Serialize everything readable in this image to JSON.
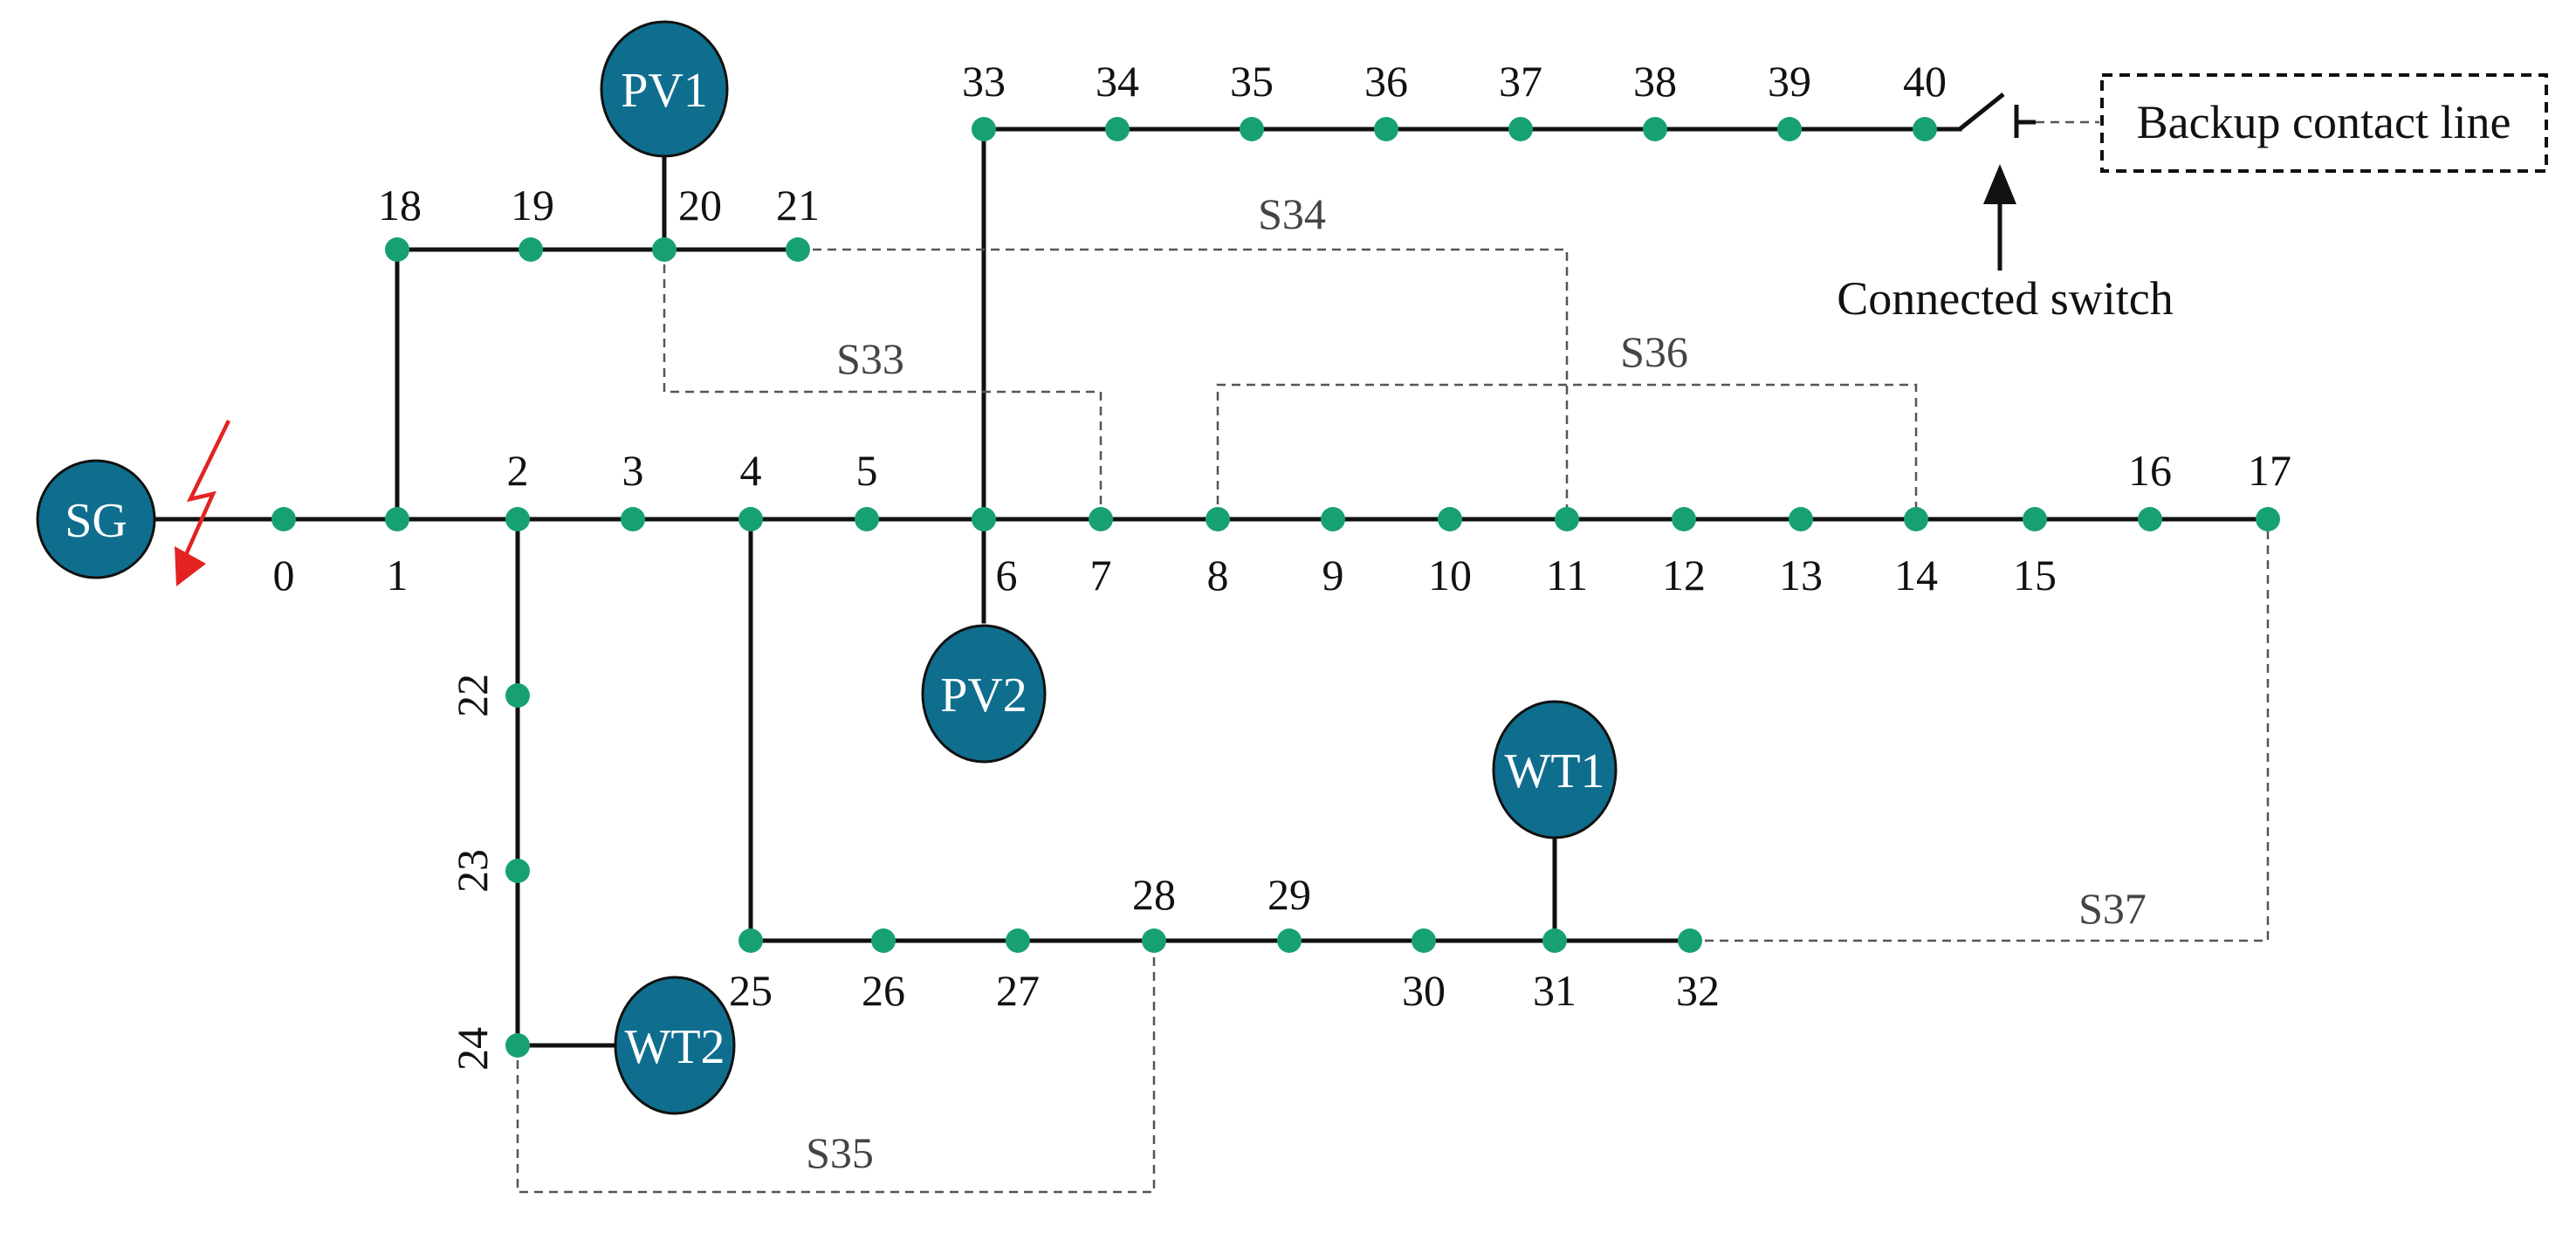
{
  "colors": {
    "node": "#17a173",
    "source_fill": "#0f6e8e",
    "line": "#111111",
    "tie_line": "#555555",
    "fault": "#e32222",
    "label_dark": "#111111",
    "label_tie": "#444444",
    "source_text": "#ffffff"
  },
  "nodes": [
    "0",
    "1",
    "2",
    "3",
    "4",
    "5",
    "6",
    "7",
    "8",
    "9",
    "10",
    "11",
    "12",
    "13",
    "14",
    "15",
    "16",
    "17",
    "18",
    "19",
    "20",
    "21",
    "22",
    "23",
    "24",
    "25",
    "26",
    "27",
    "28",
    "29",
    "30",
    "31",
    "32",
    "33",
    "34",
    "35",
    "36",
    "37",
    "38",
    "39",
    "40"
  ],
  "sources": {
    "sg": "SG",
    "pv1": "PV1",
    "pv2": "PV2",
    "wt1": "WT1",
    "wt2": "WT2"
  },
  "tie_switches": {
    "s33": "S33",
    "s34": "S34",
    "s35": "S35",
    "s36": "S36",
    "s37": "S37"
  },
  "annotations": {
    "backup_line": "Backup contact line",
    "connected_switch": "Connected switch"
  },
  "fault_icon": "lightning-fault-icon"
}
